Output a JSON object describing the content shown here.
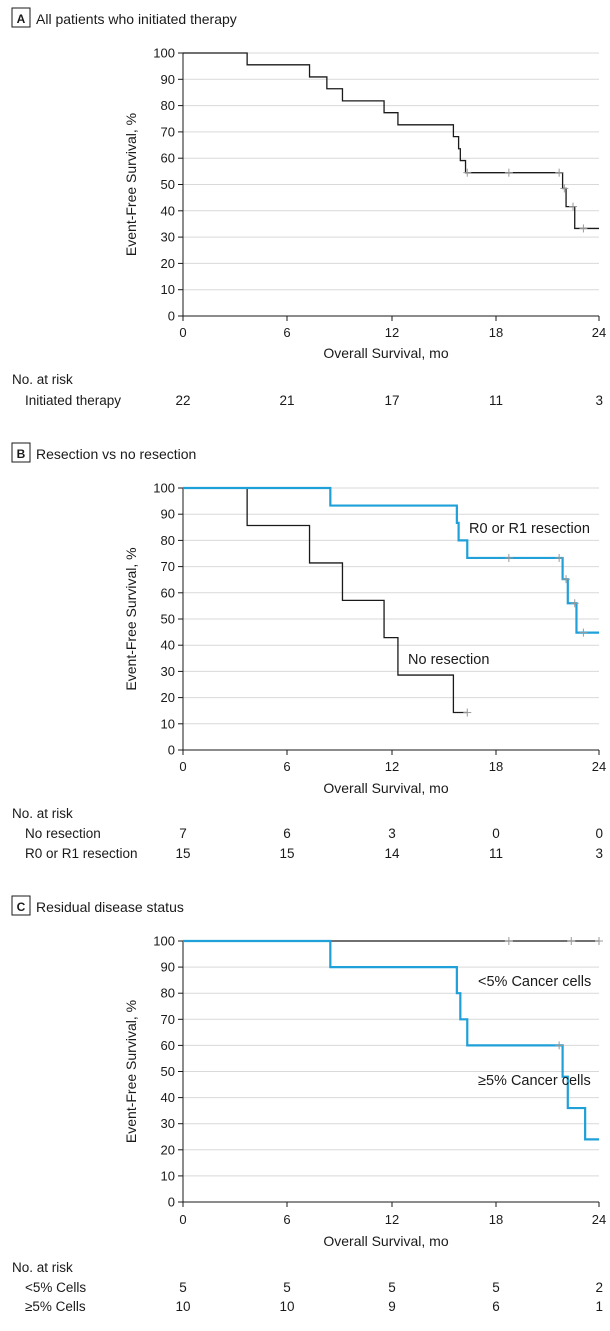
{
  "colors": {
    "black_curve": "#1a1a1a",
    "blue_curve": "#1fa0d8",
    "censor": "#999999",
    "grid": "#d9d9d9"
  },
  "chart_data": [
    {
      "type": "line",
      "panel": "A",
      "title": "All patients who initiated therapy",
      "xlabel": "Overall Survival, mo",
      "ylabel": "Event-Free Survival, %",
      "xlim": [
        0,
        24
      ],
      "ylim": [
        0,
        100
      ],
      "xticks": [
        "0",
        "6",
        "12",
        "18",
        "24"
      ],
      "yticks": [
        "0",
        "10",
        "20",
        "30",
        "40",
        "50",
        "60",
        "70",
        "80",
        "90",
        "100"
      ],
      "grid": true,
      "series": [
        {
          "name": "",
          "color": "black",
          "x": [
            0,
            3.7,
            7.3,
            8.3,
            9.2,
            11.6,
            12.4,
            15.6,
            15.9,
            16.0,
            16.3,
            21.9,
            22.1,
            22.6,
            23.2
          ],
          "y": [
            100,
            95.5,
            90.9,
            86.4,
            81.8,
            77.3,
            72.7,
            68.2,
            63.6,
            59.1,
            54.5,
            48.5,
            41.6,
            33.3,
            33.3
          ],
          "censored": [
            [
              16.4,
              54.5
            ],
            [
              18.8,
              54.5
            ],
            [
              21.7,
              54.5
            ],
            [
              22.0,
              48.5
            ],
            [
              22.5,
              41.6
            ],
            [
              23.1,
              33.3
            ]
          ]
        }
      ],
      "risk_table": {
        "header": "No. at risk",
        "rows": [
          {
            "label": "Initiated therapy",
            "values": [
              "22",
              "21",
              "17",
              "11",
              "3"
            ]
          }
        ]
      }
    },
    {
      "type": "line",
      "panel": "B",
      "title": "Resection vs no resection",
      "xlabel": "Overall Survival, mo",
      "ylabel": "Event-Free Survival, %",
      "xlim": [
        0,
        24
      ],
      "ylim": [
        0,
        100
      ],
      "xticks": [
        "0",
        "6",
        "12",
        "18",
        "24"
      ],
      "yticks": [
        "0",
        "10",
        "20",
        "30",
        "40",
        "50",
        "60",
        "70",
        "80",
        "90",
        "100"
      ],
      "grid": true,
      "series": [
        {
          "name": "No resection",
          "color": "black",
          "x": [
            0,
            3.7,
            7.3,
            9.2,
            11.6,
            12.4,
            15.6,
            16.4
          ],
          "y": [
            100,
            85.7,
            71.4,
            57.1,
            42.9,
            28.6,
            14.3,
            14.3
          ],
          "censored": [
            [
              16.4,
              14.3
            ]
          ]
        },
        {
          "name": "R0 or R1 resection",
          "color": "blue",
          "x": [
            0,
            8.5,
            15.8,
            15.9,
            16.4,
            21.9,
            22.2,
            22.7,
            23.2,
            24
          ],
          "y": [
            100,
            93.3,
            86.7,
            80.0,
            73.3,
            65.2,
            56.0,
            44.8,
            44.8,
            44.8
          ],
          "censored": [
            [
              18.8,
              73.3
            ],
            [
              21.7,
              73.3
            ],
            [
              22.1,
              65.2
            ],
            [
              22.6,
              56.0
            ],
            [
              23.1,
              44.8
            ]
          ]
        }
      ],
      "risk_table": {
        "header": "No. at risk",
        "rows": [
          {
            "label": "No resection",
            "values": [
              "7",
              "6",
              "3",
              "0",
              "0"
            ]
          },
          {
            "label": "R0 or R1 resection",
            "values": [
              "15",
              "15",
              "14",
              "11",
              "3"
            ]
          }
        ]
      }
    },
    {
      "type": "line",
      "panel": "C",
      "title": "Residual disease status",
      "xlabel": "Overall Survival, mo",
      "ylabel": "Event-Free Survival, %",
      "xlim": [
        0,
        24
      ],
      "ylim": [
        0,
        100
      ],
      "xticks": [
        "0",
        "6",
        "12",
        "18",
        "24"
      ],
      "yticks": [
        "0",
        "10",
        "20",
        "30",
        "40",
        "50",
        "60",
        "70",
        "80",
        "90",
        "100"
      ],
      "grid": true,
      "series": [
        {
          "name": "<5% Cancer cells",
          "color": "black",
          "x": [
            0,
            24
          ],
          "y": [
            100,
            100
          ],
          "censored": [
            [
              18.8,
              100
            ],
            [
              22.4,
              100
            ],
            [
              24,
              100
            ]
          ]
        },
        {
          "name": "≥5% Cancer cells",
          "color": "blue",
          "x": [
            0,
            8.5,
            15.8,
            16.0,
            16.4,
            21.9,
            22.2,
            23.2,
            24
          ],
          "y": [
            100,
            90,
            80,
            70,
            60,
            48,
            36,
            24,
            24
          ],
          "censored": [
            [
              21.7,
              60
            ]
          ]
        }
      ],
      "risk_table": {
        "header": "No. at risk",
        "rows": [
          {
            "label": "<5% Cells",
            "values": [
              "5",
              "5",
              "5",
              "5",
              "2"
            ]
          },
          {
            "label": "≥5% Cells",
            "values": [
              "10",
              "10",
              "9",
              "6",
              "1"
            ]
          }
        ]
      }
    }
  ]
}
